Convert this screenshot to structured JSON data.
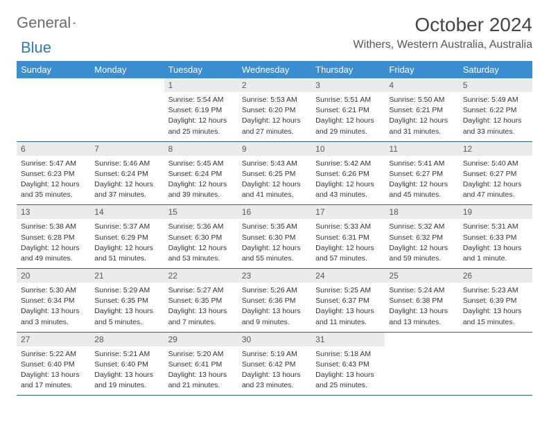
{
  "brand": {
    "part1": "General",
    "part2": "Blue"
  },
  "title": "October 2024",
  "location": "Withers, Western Australia, Australia",
  "colors": {
    "header_bg": "#3a8dd0",
    "header_text": "#ffffff",
    "daynum_bg": "#ebebeb",
    "week_border": "#2b5f8f",
    "brand_gray": "#6b6b6b",
    "brand_blue": "#2b7bbf",
    "text": "#333333"
  },
  "day_names": [
    "Sunday",
    "Monday",
    "Tuesday",
    "Wednesday",
    "Thursday",
    "Friday",
    "Saturday"
  ],
  "weeks": [
    [
      {
        "day": "",
        "empty": true
      },
      {
        "day": "",
        "empty": true
      },
      {
        "day": "1",
        "sunrise": "Sunrise: 5:54 AM",
        "sunset": "Sunset: 6:19 PM",
        "daylight1": "Daylight: 12 hours",
        "daylight2": "and 25 minutes."
      },
      {
        "day": "2",
        "sunrise": "Sunrise: 5:53 AM",
        "sunset": "Sunset: 6:20 PM",
        "daylight1": "Daylight: 12 hours",
        "daylight2": "and 27 minutes."
      },
      {
        "day": "3",
        "sunrise": "Sunrise: 5:51 AM",
        "sunset": "Sunset: 6:21 PM",
        "daylight1": "Daylight: 12 hours",
        "daylight2": "and 29 minutes."
      },
      {
        "day": "4",
        "sunrise": "Sunrise: 5:50 AM",
        "sunset": "Sunset: 6:21 PM",
        "daylight1": "Daylight: 12 hours",
        "daylight2": "and 31 minutes."
      },
      {
        "day": "5",
        "sunrise": "Sunrise: 5:49 AM",
        "sunset": "Sunset: 6:22 PM",
        "daylight1": "Daylight: 12 hours",
        "daylight2": "and 33 minutes."
      }
    ],
    [
      {
        "day": "6",
        "sunrise": "Sunrise: 5:47 AM",
        "sunset": "Sunset: 6:23 PM",
        "daylight1": "Daylight: 12 hours",
        "daylight2": "and 35 minutes."
      },
      {
        "day": "7",
        "sunrise": "Sunrise: 5:46 AM",
        "sunset": "Sunset: 6:24 PM",
        "daylight1": "Daylight: 12 hours",
        "daylight2": "and 37 minutes."
      },
      {
        "day": "8",
        "sunrise": "Sunrise: 5:45 AM",
        "sunset": "Sunset: 6:24 PM",
        "daylight1": "Daylight: 12 hours",
        "daylight2": "and 39 minutes."
      },
      {
        "day": "9",
        "sunrise": "Sunrise: 5:43 AM",
        "sunset": "Sunset: 6:25 PM",
        "daylight1": "Daylight: 12 hours",
        "daylight2": "and 41 minutes."
      },
      {
        "day": "10",
        "sunrise": "Sunrise: 5:42 AM",
        "sunset": "Sunset: 6:26 PM",
        "daylight1": "Daylight: 12 hours",
        "daylight2": "and 43 minutes."
      },
      {
        "day": "11",
        "sunrise": "Sunrise: 5:41 AM",
        "sunset": "Sunset: 6:27 PM",
        "daylight1": "Daylight: 12 hours",
        "daylight2": "and 45 minutes."
      },
      {
        "day": "12",
        "sunrise": "Sunrise: 5:40 AM",
        "sunset": "Sunset: 6:27 PM",
        "daylight1": "Daylight: 12 hours",
        "daylight2": "and 47 minutes."
      }
    ],
    [
      {
        "day": "13",
        "sunrise": "Sunrise: 5:38 AM",
        "sunset": "Sunset: 6:28 PM",
        "daylight1": "Daylight: 12 hours",
        "daylight2": "and 49 minutes."
      },
      {
        "day": "14",
        "sunrise": "Sunrise: 5:37 AM",
        "sunset": "Sunset: 6:29 PM",
        "daylight1": "Daylight: 12 hours",
        "daylight2": "and 51 minutes."
      },
      {
        "day": "15",
        "sunrise": "Sunrise: 5:36 AM",
        "sunset": "Sunset: 6:30 PM",
        "daylight1": "Daylight: 12 hours",
        "daylight2": "and 53 minutes."
      },
      {
        "day": "16",
        "sunrise": "Sunrise: 5:35 AM",
        "sunset": "Sunset: 6:30 PM",
        "daylight1": "Daylight: 12 hours",
        "daylight2": "and 55 minutes."
      },
      {
        "day": "17",
        "sunrise": "Sunrise: 5:33 AM",
        "sunset": "Sunset: 6:31 PM",
        "daylight1": "Daylight: 12 hours",
        "daylight2": "and 57 minutes."
      },
      {
        "day": "18",
        "sunrise": "Sunrise: 5:32 AM",
        "sunset": "Sunset: 6:32 PM",
        "daylight1": "Daylight: 12 hours",
        "daylight2": "and 59 minutes."
      },
      {
        "day": "19",
        "sunrise": "Sunrise: 5:31 AM",
        "sunset": "Sunset: 6:33 PM",
        "daylight1": "Daylight: 13 hours",
        "daylight2": "and 1 minute."
      }
    ],
    [
      {
        "day": "20",
        "sunrise": "Sunrise: 5:30 AM",
        "sunset": "Sunset: 6:34 PM",
        "daylight1": "Daylight: 13 hours",
        "daylight2": "and 3 minutes."
      },
      {
        "day": "21",
        "sunrise": "Sunrise: 5:29 AM",
        "sunset": "Sunset: 6:35 PM",
        "daylight1": "Daylight: 13 hours",
        "daylight2": "and 5 minutes."
      },
      {
        "day": "22",
        "sunrise": "Sunrise: 5:27 AM",
        "sunset": "Sunset: 6:35 PM",
        "daylight1": "Daylight: 13 hours",
        "daylight2": "and 7 minutes."
      },
      {
        "day": "23",
        "sunrise": "Sunrise: 5:26 AM",
        "sunset": "Sunset: 6:36 PM",
        "daylight1": "Daylight: 13 hours",
        "daylight2": "and 9 minutes."
      },
      {
        "day": "24",
        "sunrise": "Sunrise: 5:25 AM",
        "sunset": "Sunset: 6:37 PM",
        "daylight1": "Daylight: 13 hours",
        "daylight2": "and 11 minutes."
      },
      {
        "day": "25",
        "sunrise": "Sunrise: 5:24 AM",
        "sunset": "Sunset: 6:38 PM",
        "daylight1": "Daylight: 13 hours",
        "daylight2": "and 13 minutes."
      },
      {
        "day": "26",
        "sunrise": "Sunrise: 5:23 AM",
        "sunset": "Sunset: 6:39 PM",
        "daylight1": "Daylight: 13 hours",
        "daylight2": "and 15 minutes."
      }
    ],
    [
      {
        "day": "27",
        "sunrise": "Sunrise: 5:22 AM",
        "sunset": "Sunset: 6:40 PM",
        "daylight1": "Daylight: 13 hours",
        "daylight2": "and 17 minutes."
      },
      {
        "day": "28",
        "sunrise": "Sunrise: 5:21 AM",
        "sunset": "Sunset: 6:40 PM",
        "daylight1": "Daylight: 13 hours",
        "daylight2": "and 19 minutes."
      },
      {
        "day": "29",
        "sunrise": "Sunrise: 5:20 AM",
        "sunset": "Sunset: 6:41 PM",
        "daylight1": "Daylight: 13 hours",
        "daylight2": "and 21 minutes."
      },
      {
        "day": "30",
        "sunrise": "Sunrise: 5:19 AM",
        "sunset": "Sunset: 6:42 PM",
        "daylight1": "Daylight: 13 hours",
        "daylight2": "and 23 minutes."
      },
      {
        "day": "31",
        "sunrise": "Sunrise: 5:18 AM",
        "sunset": "Sunset: 6:43 PM",
        "daylight1": "Daylight: 13 hours",
        "daylight2": "and 25 minutes."
      },
      {
        "day": "",
        "empty": true
      },
      {
        "day": "",
        "empty": true
      }
    ]
  ]
}
